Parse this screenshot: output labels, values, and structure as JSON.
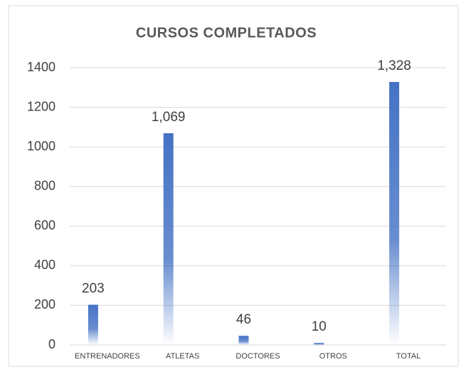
{
  "chart_data": {
    "type": "bar",
    "title": "CURSOS COMPLETADOS",
    "categories": [
      "ENTRENADORES",
      "ATLETAS",
      "DOCTORES",
      "OTROS",
      "TOTAL"
    ],
    "values": [
      203,
      1069,
      46,
      10,
      1328
    ],
    "value_labels": [
      "203",
      "1,069",
      "46",
      "10",
      "1,328"
    ],
    "color": "#4472c4",
    "ylim": [
      0,
      1400
    ],
    "yticks": [
      0,
      200,
      400,
      600,
      800,
      1000,
      1200,
      1400
    ],
    "grid": true
  }
}
